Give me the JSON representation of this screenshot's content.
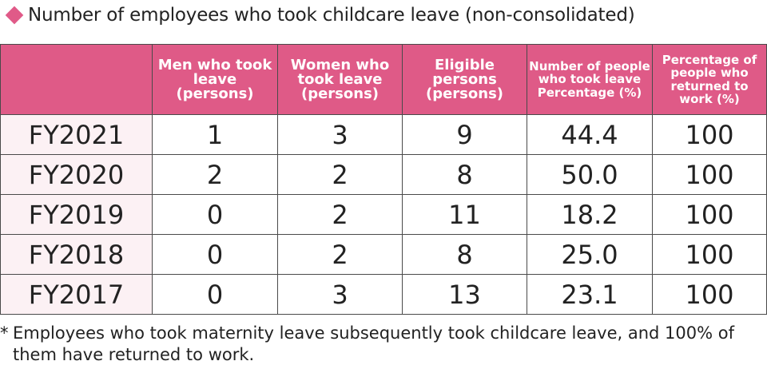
{
  "title": {
    "marker_icon": "diamond-bullet",
    "text": "Number of employees who took childcare leave (non-consolidated)"
  },
  "colors": {
    "header_bg": "#df5a87",
    "header_text": "#ffffff",
    "year_cell_bg": "#fcf1f4",
    "marker": "#e05a88",
    "border": "#4a4a4a"
  },
  "table": {
    "headers": [
      "",
      "Men who took leave (persons)",
      "Women who took leave (persons)",
      "Eligible persons (persons)",
      "Number of people who took leave Percentage (%)",
      "Percentage of people who returned to work (%)"
    ],
    "rows": [
      [
        "FY2021",
        "1",
        "3",
        "9",
        "44.4",
        "100"
      ],
      [
        "FY2020",
        "2",
        "2",
        "8",
        "50.0",
        "100"
      ],
      [
        "FY2019",
        "0",
        "2",
        "11",
        "18.2",
        "100"
      ],
      [
        "FY2018",
        "0",
        "2",
        "8",
        "25.0",
        "100"
      ],
      [
        "FY2017",
        "0",
        "3",
        "13",
        "23.1",
        "100"
      ]
    ]
  },
  "note": {
    "marker": "*",
    "text": "Employees who took maternity leave subsequently took childcare leave, and 100% of them have returned to work."
  }
}
